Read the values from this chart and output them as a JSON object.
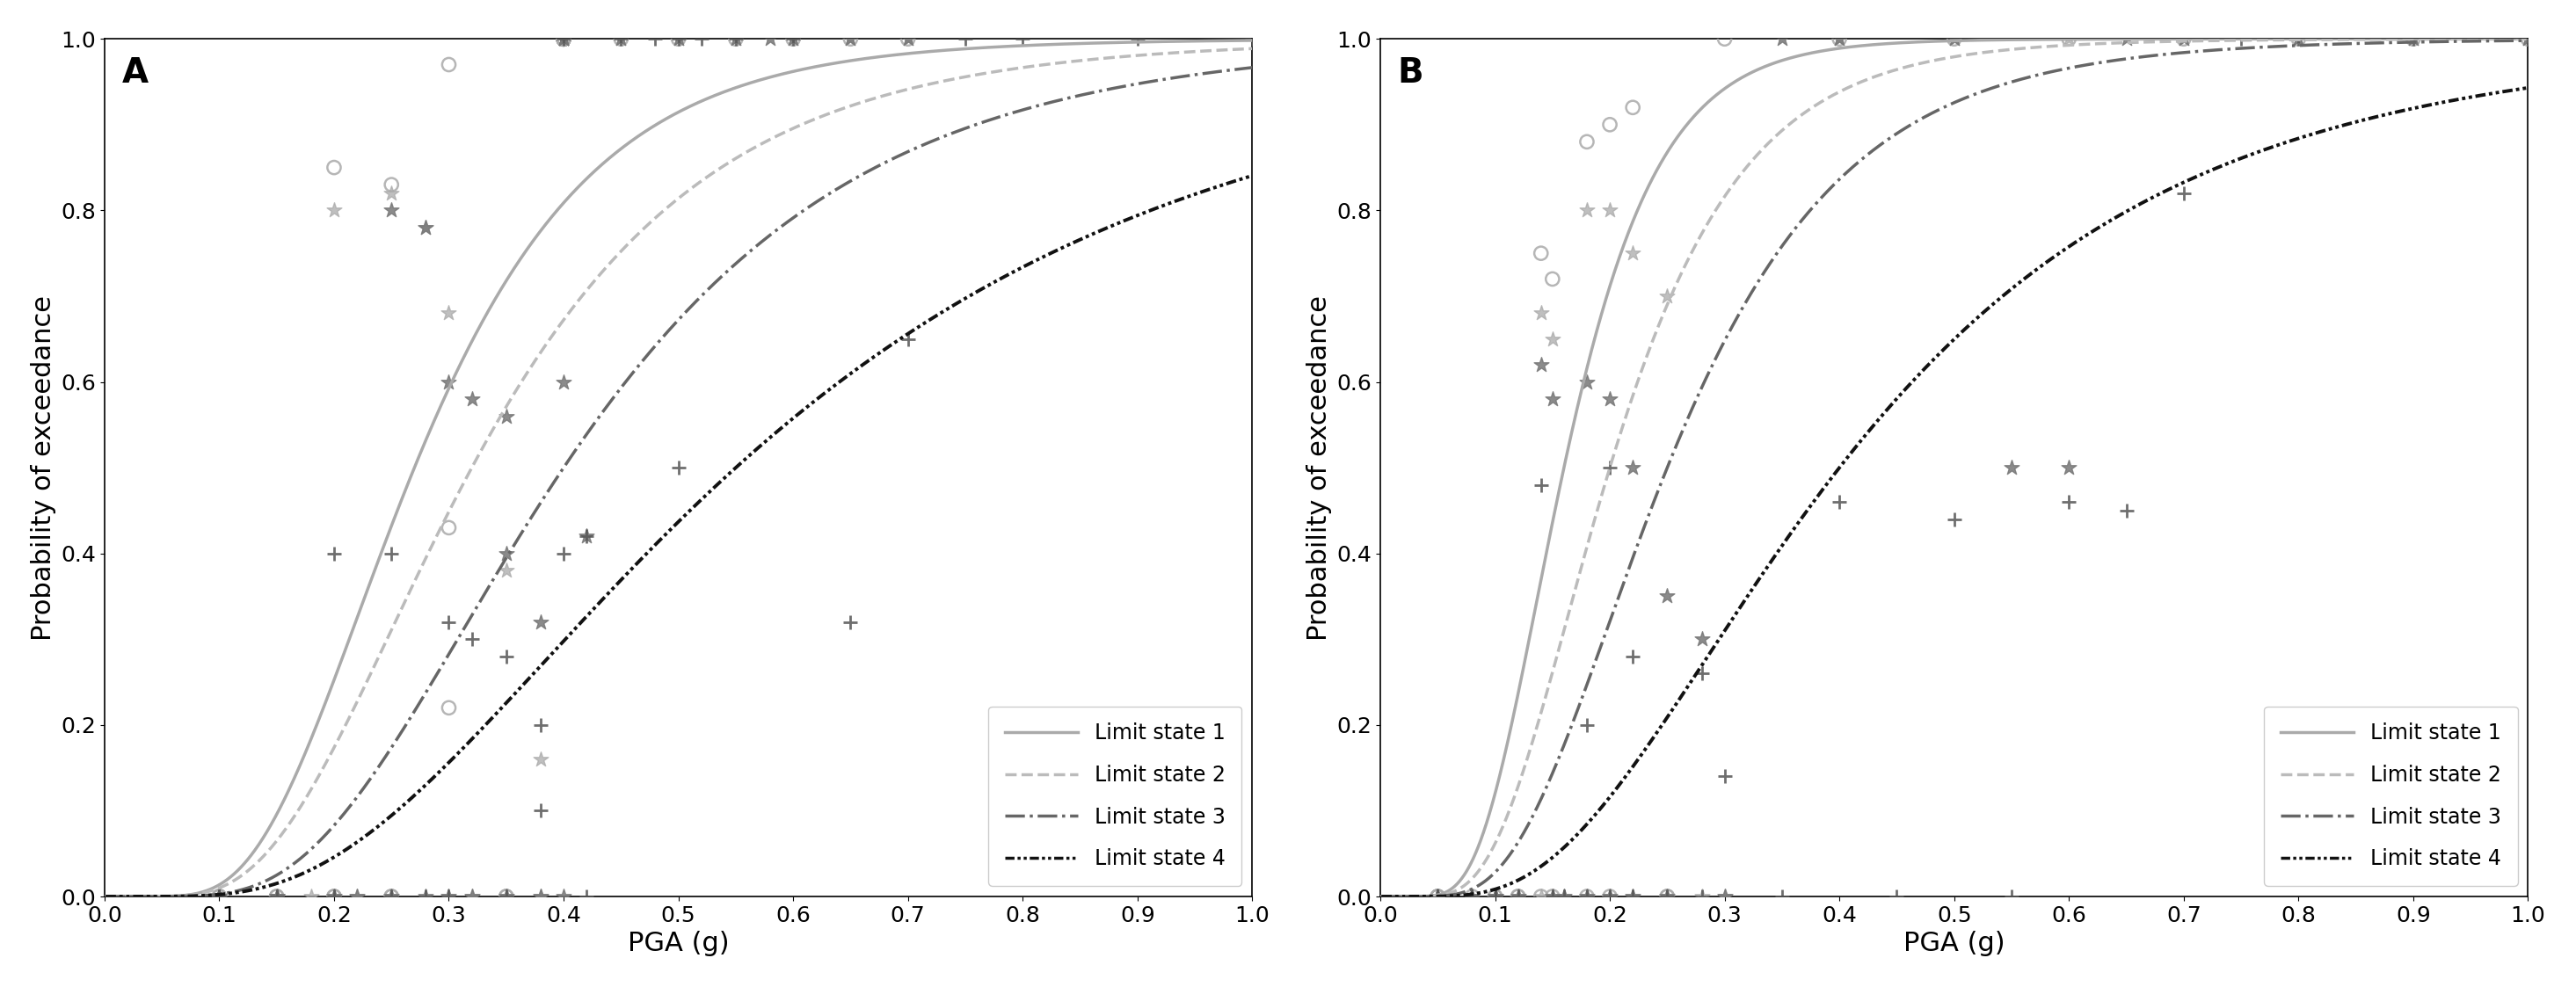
{
  "panel_A": {
    "label": "A",
    "curves": [
      {
        "name": "Limit state 1",
        "median": 0.27,
        "beta": 0.45,
        "color": "#aaaaaa",
        "linestyle": "solid",
        "lw": 2.5
      },
      {
        "name": "Limit state 2",
        "median": 0.32,
        "beta": 0.5,
        "color": "#bbbbbb",
        "linestyle": "dashed",
        "lw": 2.5
      },
      {
        "name": "Limit state 3",
        "median": 0.4,
        "beta": 0.5,
        "color": "#666666",
        "linestyle": "dashdot",
        "lw": 2.5
      },
      {
        "name": "Limit state 4",
        "median": 0.55,
        "beta": 0.6,
        "color": "#111111",
        "linestyle": "dashdotdotted",
        "lw": 2.8
      }
    ],
    "scatter_circles": {
      "color": "#aaaaaa",
      "x": [
        0.1,
        0.1,
        0.1,
        0.15,
        0.15,
        0.2,
        0.2,
        0.2,
        0.25,
        0.25,
        0.25,
        0.3,
        0.3,
        0.3,
        0.35,
        0.35,
        0.4,
        0.4,
        0.4,
        0.4,
        0.4,
        0.4,
        0.4,
        0.4,
        0.4,
        0.4,
        0.45,
        0.5,
        0.55,
        0.6,
        0.65,
        0.7
      ],
      "y": [
        0.0,
        0.0,
        0.0,
        0.0,
        0.0,
        0.85,
        0.0,
        0.0,
        0.83,
        0.0,
        0.0,
        0.97,
        0.43,
        0.22,
        0.0,
        0.0,
        1.0,
        1.0,
        1.0,
        1.0,
        1.0,
        1.0,
        1.0,
        1.0,
        1.0,
        1.0,
        1.0,
        1.0,
        1.0,
        1.0,
        1.0,
        1.0
      ]
    },
    "scatter_stars_light": {
      "color": "#aaaaaa",
      "x": [
        0.1,
        0.1,
        0.1,
        0.15,
        0.15,
        0.18,
        0.2,
        0.2,
        0.22,
        0.25,
        0.25,
        0.28,
        0.3,
        0.3,
        0.32,
        0.35,
        0.35,
        0.38,
        0.38,
        0.4,
        0.4,
        0.4,
        0.4,
        0.4,
        0.45,
        0.5,
        0.55,
        0.6,
        0.65,
        0.7
      ],
      "y": [
        0.0,
        0.0,
        0.0,
        0.0,
        0.0,
        0.0,
        0.8,
        0.0,
        0.0,
        0.82,
        0.0,
        0.78,
        0.68,
        0.0,
        0.0,
        0.38,
        0.0,
        0.16,
        0.0,
        1.0,
        1.0,
        1.0,
        1.0,
        1.0,
        1.0,
        1.0,
        1.0,
        1.0,
        1.0,
        1.0
      ]
    },
    "scatter_stars_dark": {
      "color": "#777777",
      "x": [
        0.1,
        0.1,
        0.1,
        0.15,
        0.15,
        0.2,
        0.22,
        0.25,
        0.25,
        0.28,
        0.28,
        0.3,
        0.3,
        0.32,
        0.32,
        0.35,
        0.35,
        0.35,
        0.38,
        0.38,
        0.4,
        0.4,
        0.4,
        0.4,
        0.4,
        0.42,
        0.45,
        0.5,
        0.55,
        0.58,
        0.6,
        0.65,
        0.7
      ],
      "y": [
        0.0,
        0.0,
        0.0,
        0.0,
        0.0,
        0.0,
        0.0,
        0.8,
        0.0,
        0.78,
        0.0,
        0.6,
        0.0,
        0.58,
        0.0,
        0.56,
        0.4,
        0.0,
        0.32,
        0.0,
        1.0,
        1.0,
        1.0,
        0.6,
        0.0,
        0.42,
        1.0,
        1.0,
        1.0,
        1.0,
        1.0,
        1.0,
        1.0
      ]
    },
    "scatter_plus": {
      "color": "#555555",
      "x": [
        0.1,
        0.1,
        0.1,
        0.15,
        0.2,
        0.2,
        0.25,
        0.25,
        0.28,
        0.3,
        0.3,
        0.32,
        0.35,
        0.35,
        0.38,
        0.38,
        0.4,
        0.4,
        0.42,
        0.42,
        0.45,
        0.48,
        0.5,
        0.5,
        0.52,
        0.55,
        0.6,
        0.65,
        0.7,
        0.75,
        0.8,
        0.9,
        1.0
      ],
      "y": [
        0.0,
        0.0,
        0.0,
        0.0,
        0.4,
        0.0,
        0.4,
        0.0,
        0.0,
        0.32,
        0.0,
        0.3,
        0.28,
        0.0,
        0.2,
        0.1,
        1.0,
        0.4,
        0.42,
        0.0,
        1.0,
        1.0,
        1.0,
        0.5,
        1.0,
        1.0,
        1.0,
        0.32,
        0.65,
        1.0,
        1.0,
        1.0,
        1.0
      ]
    }
  },
  "panel_B": {
    "label": "B",
    "curves": [
      {
        "name": "Limit state 1",
        "median": 0.16,
        "beta": 0.4,
        "color": "#aaaaaa",
        "linestyle": "solid",
        "lw": 2.5
      },
      {
        "name": "Limit state 2",
        "median": 0.2,
        "beta": 0.45,
        "color": "#bbbbbb",
        "linestyle": "dashed",
        "lw": 2.5
      },
      {
        "name": "Limit state 3",
        "median": 0.25,
        "beta": 0.48,
        "color": "#666666",
        "linestyle": "dashdot",
        "lw": 2.5
      },
      {
        "name": "Limit state 4",
        "median": 0.4,
        "beta": 0.58,
        "color": "#111111",
        "linestyle": "dashdotdotted",
        "lw": 2.8
      }
    ],
    "scatter_circles": {
      "color": "#aaaaaa",
      "x": [
        0.05,
        0.05,
        0.05,
        0.08,
        0.1,
        0.1,
        0.12,
        0.12,
        0.14,
        0.14,
        0.15,
        0.15,
        0.18,
        0.18,
        0.2,
        0.2,
        0.22,
        0.25,
        0.25,
        0.3,
        0.4,
        0.5,
        0.6,
        0.7,
        0.8,
        0.9,
        1.0
      ],
      "y": [
        0.0,
        0.0,
        0.0,
        0.0,
        0.0,
        0.0,
        0.0,
        0.0,
        0.75,
        0.0,
        0.72,
        0.0,
        0.88,
        0.0,
        0.9,
        0.0,
        0.92,
        0.0,
        0.0,
        1.0,
        1.0,
        1.0,
        1.0,
        1.0,
        1.0,
        1.0,
        1.0
      ]
    },
    "scatter_stars_light": {
      "color": "#aaaaaa",
      "x": [
        0.05,
        0.05,
        0.05,
        0.08,
        0.08,
        0.1,
        0.1,
        0.12,
        0.14,
        0.14,
        0.15,
        0.15,
        0.16,
        0.18,
        0.18,
        0.2,
        0.2,
        0.22,
        0.22,
        0.25,
        0.25,
        0.28,
        0.3,
        0.4,
        0.5,
        0.6,
        0.7,
        0.8,
        0.9,
        1.0
      ],
      "y": [
        0.0,
        0.0,
        0.0,
        0.0,
        0.0,
        0.0,
        0.0,
        0.0,
        0.68,
        0.0,
        0.65,
        0.0,
        0.0,
        0.8,
        0.0,
        0.8,
        0.0,
        0.75,
        0.0,
        0.7,
        0.0,
        0.0,
        0.0,
        1.0,
        1.0,
        1.0,
        1.0,
        1.0,
        1.0,
        1.0
      ]
    },
    "scatter_stars_dark": {
      "color": "#777777",
      "x": [
        0.05,
        0.05,
        0.05,
        0.08,
        0.08,
        0.1,
        0.1,
        0.12,
        0.14,
        0.15,
        0.15,
        0.16,
        0.18,
        0.18,
        0.2,
        0.2,
        0.22,
        0.22,
        0.25,
        0.25,
        0.28,
        0.3,
        0.35,
        0.4,
        0.5,
        0.55,
        0.6,
        0.65,
        0.7,
        0.8,
        0.9,
        1.0
      ],
      "y": [
        0.0,
        0.0,
        0.0,
        0.0,
        0.0,
        0.0,
        0.0,
        0.0,
        0.62,
        0.58,
        0.0,
        0.0,
        0.6,
        0.0,
        0.58,
        0.0,
        0.5,
        0.0,
        0.35,
        0.0,
        0.3,
        0.0,
        1.0,
        1.0,
        1.0,
        0.5,
        0.5,
        1.0,
        1.0,
        1.0,
        1.0,
        1.0
      ]
    },
    "scatter_plus": {
      "color": "#555555",
      "x": [
        0.05,
        0.05,
        0.05,
        0.08,
        0.08,
        0.1,
        0.1,
        0.12,
        0.14,
        0.15,
        0.16,
        0.18,
        0.18,
        0.2,
        0.2,
        0.22,
        0.22,
        0.25,
        0.28,
        0.28,
        0.3,
        0.35,
        0.4,
        0.45,
        0.5,
        0.55,
        0.6,
        0.65,
        0.7,
        0.75,
        0.8,
        0.9,
        1.0
      ],
      "y": [
        0.0,
        0.0,
        0.0,
        0.0,
        0.0,
        0.0,
        0.0,
        0.0,
        0.48,
        0.0,
        0.0,
        0.2,
        0.0,
        0.5,
        0.0,
        0.28,
        0.0,
        0.0,
        0.26,
        0.0,
        0.14,
        0.0,
        0.46,
        0.0,
        0.44,
        0.0,
        0.46,
        0.45,
        0.82,
        1.0,
        1.0,
        1.0,
        1.0
      ]
    }
  },
  "xlabel": "PGA (g)",
  "ylabel": "Probability of exceedance",
  "xlim": [
    0,
    1.0
  ],
  "ylim": [
    0,
    1.0
  ],
  "xticks": [
    0,
    0.1,
    0.2,
    0.3,
    0.4,
    0.5,
    0.6,
    0.7,
    0.8,
    0.9,
    1
  ],
  "yticks": [
    0,
    0.2,
    0.4,
    0.6,
    0.8,
    1
  ],
  "legend_labels": [
    "Limit state 1",
    "Limit state 2",
    "Limit state 3",
    "Limit state 4"
  ],
  "legend_colors": [
    "#aaaaaa",
    "#bbbbbb",
    "#666666",
    "#111111"
  ],
  "legend_linestyles": [
    "solid",
    "dashed",
    "dashdot",
    "dashdotdotted"
  ]
}
